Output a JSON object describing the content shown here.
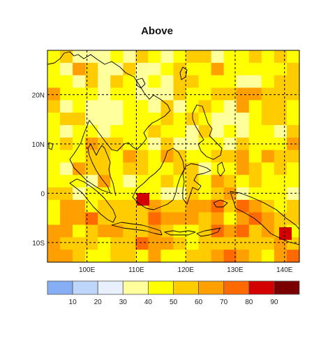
{
  "title": "Above",
  "map": {
    "lon_range": [
      92,
      143
    ],
    "lat_range": [
      -14,
      29
    ],
    "lon_ticks": [
      {
        "lon": 100,
        "label": "100E"
      },
      {
        "lon": 110,
        "label": "110E"
      },
      {
        "lon": 120,
        "label": "120E"
      },
      {
        "lon": 130,
        "label": "130E"
      },
      {
        "lon": 140,
        "label": "140E"
      }
    ],
    "lat_ticks": [
      {
        "lat": 20,
        "label": "20N"
      },
      {
        "lat": 10,
        "label": "10N"
      },
      {
        "lat": 0,
        "label": "0"
      },
      {
        "lat": -10,
        "label": "10S"
      }
    ],
    "gridlines": "dashed"
  },
  "legend": {
    "colors": [
      "#86aef5",
      "#bfd6fb",
      "#e8f0fe",
      "#ffff9c",
      "#ffff00",
      "#ffcc00",
      "#ff9f00",
      "#ff6a00",
      "#d40000",
      "#7a0000"
    ],
    "labels": [
      "10",
      "20",
      "30",
      "40",
      "50",
      "60",
      "70",
      "80",
      "90"
    ]
  }
}
